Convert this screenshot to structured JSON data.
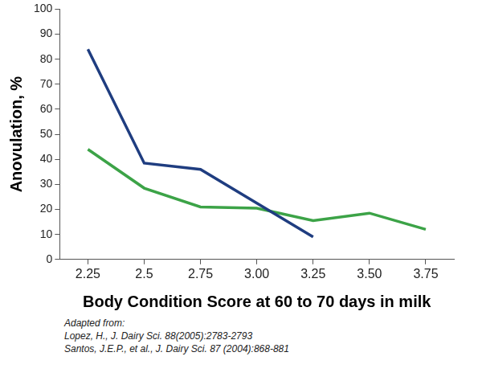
{
  "chart_data": {
    "type": "line",
    "x_label": "Body Condition Score at 60 to 70 days in milk",
    "y_label": "Anovulation, %",
    "categories": [
      "2.25",
      "2.5",
      "2.75",
      "3.00",
      "3.25",
      "3.50",
      "3.75"
    ],
    "series": [
      {
        "color": "#1f3d80",
        "values": [
          84,
          38.5,
          36,
          22.5,
          9,
          null,
          null
        ]
      },
      {
        "color": "#3ca347",
        "values": [
          44,
          28.5,
          21,
          20.5,
          15.5,
          18.5,
          12
        ]
      }
    ],
    "ylim": [
      0,
      100
    ],
    "yticks": [
      0,
      10,
      20,
      30,
      40,
      50,
      60,
      70,
      80,
      90,
      100
    ],
    "grid": false,
    "marker": "none",
    "notes": [
      "Adapted from:",
      "Lopez, H., J. Dairy Sci. 88(2005):2783-2793",
      "Santos, J.E.P., et al., J. Dairy Sci. 87 (2004):868-881"
    ]
  }
}
